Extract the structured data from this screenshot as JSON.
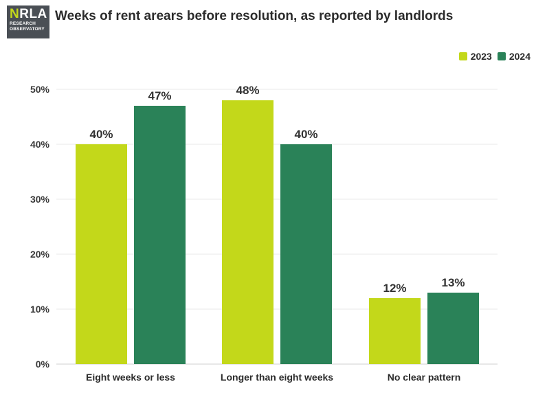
{
  "logo": {
    "brand_prefix": "N",
    "brand_rest": "RLA",
    "line1": "RESEARCH",
    "line2": "OBSERVATORY"
  },
  "colors": {
    "series_2023": "#c3d81a",
    "series_2024": "#2a8258",
    "grid": "#e8e8e8",
    "axis": "#d0d0d0"
  },
  "chart_data": {
    "type": "bar",
    "title": "Weeks of rent arears before resolution, as reported by landlords",
    "categories": [
      "Eight weeks or less",
      "Longer than eight weeks",
      "No clear pattern"
    ],
    "series": [
      {
        "name": "2023",
        "values": [
          40,
          48,
          12
        ],
        "labels": [
          "40%",
          "48%",
          "12%"
        ]
      },
      {
        "name": "2024",
        "values": [
          47,
          40,
          13
        ],
        "labels": [
          "47%",
          "40%",
          "13%"
        ]
      }
    ],
    "ylim": [
      0,
      50
    ],
    "yticks": [
      "0%",
      "10%",
      "20%",
      "30%",
      "40%",
      "50%"
    ],
    "grid": true,
    "legend_position": "top-right"
  }
}
